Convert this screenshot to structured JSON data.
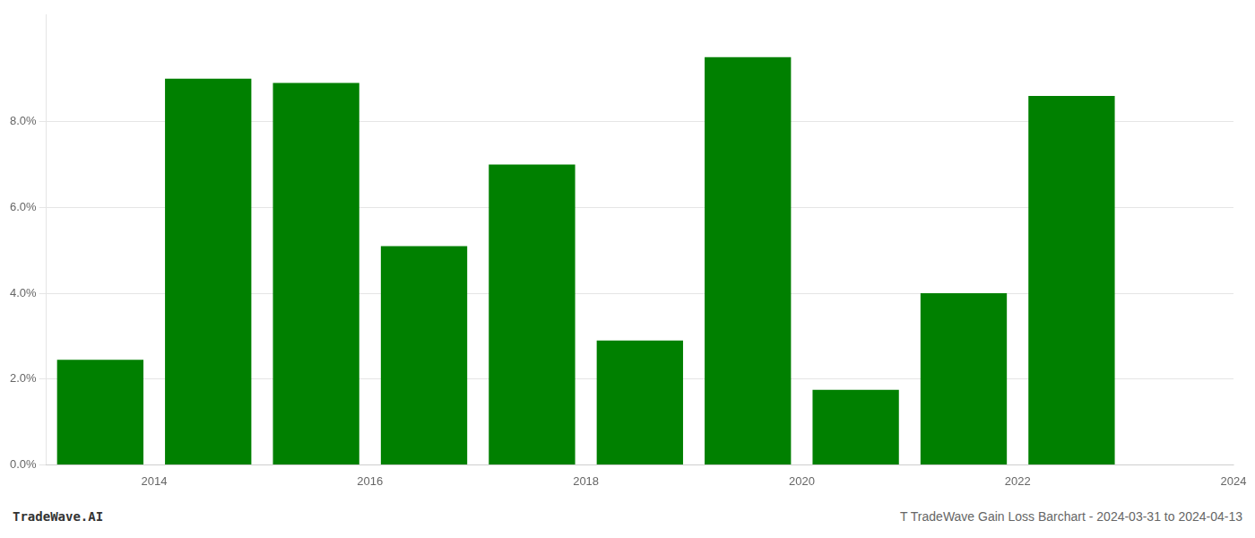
{
  "chart_data": {
    "type": "bar",
    "title": "T TradeWave Gain Loss Barchart - 2024-03-31 to 2024-04-13",
    "annotations": [
      "TradeWave.AI"
    ],
    "x": [
      2014,
      2015,
      2016,
      2017,
      2018,
      2019,
      2020,
      2021,
      2022,
      2023
    ],
    "values": [
      0.0245,
      0.09,
      0.089,
      0.051,
      0.07,
      0.029,
      0.095,
      0.0175,
      0.04,
      0.086
    ],
    "color": "#008000",
    "xlim": [
      2013.5,
      2024.5
    ],
    "xticks": [
      {
        "value": 2014.5,
        "label": "2014"
      },
      {
        "value": 2016.5,
        "label": "2016"
      },
      {
        "value": 2018.5,
        "label": "2018"
      },
      {
        "value": 2020.5,
        "label": "2020"
      },
      {
        "value": 2022.5,
        "label": "2022"
      },
      {
        "value": 2024.5,
        "label": "2024"
      }
    ],
    "ylim": [
      0,
      0.105
    ],
    "yticks": [
      {
        "value": 0.0,
        "label": "0.0%"
      },
      {
        "value": 0.02,
        "label": "2.0%"
      },
      {
        "value": 0.04,
        "label": "4.0%"
      },
      {
        "value": 0.06,
        "label": "6.0%"
      },
      {
        "value": 0.08,
        "label": "8.0%"
      }
    ],
    "grid": true
  }
}
